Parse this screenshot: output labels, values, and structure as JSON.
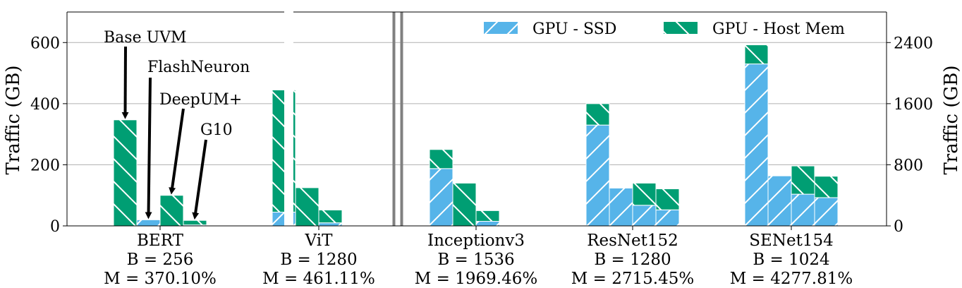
{
  "chart_data": {
    "type": "bar",
    "stacked": true,
    "grid": true,
    "legend_position": "top-right",
    "colors": {
      "ssd": "#56B4E9",
      "host": "#009E73"
    },
    "ylabel_left": "Traffic (GB)",
    "ylabel_right": "Traffic (GB)",
    "left_axis": {
      "ylim": [
        0,
        700
      ],
      "ticks": [
        "0",
        "200",
        "400",
        "600"
      ]
    },
    "right_axis": {
      "ylim": [
        0,
        2800
      ],
      "ticks": [
        "0",
        "800",
        "1600",
        "2400"
      ]
    },
    "legend": [
      {
        "label": "GPU - SSD",
        "key": "ssd"
      },
      {
        "label": "GPU - Host Mem",
        "key": "host"
      }
    ],
    "series_order": [
      "Base UVM",
      "FlashNeuron",
      "DeepUM+",
      "G10"
    ],
    "groups": [
      {
        "name": "BERT",
        "b": "B = 256",
        "m": "M = 370.10%",
        "axis": "left",
        "bars": [
          {
            "ssd": 0,
            "host": 347
          },
          {
            "ssd": 20,
            "host": 0
          },
          {
            "ssd": 0,
            "host": 100
          },
          {
            "ssd": 3,
            "host": 15
          }
        ]
      },
      {
        "name": "ViT",
        "b": "B = 1280",
        "m": "M = 461.11%",
        "axis": "left",
        "bars": [
          {
            "ssd": 45,
            "host": 400
          },
          {
            "ssd": 0,
            "host": 125
          },
          {
            "ssd": 10,
            "host": 42
          },
          {
            "ssd": 0,
            "host": 0
          }
        ]
      },
      {
        "name": "Inceptionv3",
        "b": "B = 1536",
        "m": "M = 1969.46%",
        "axis": "right",
        "bars": [
          {
            "ssd": 750,
            "host": 250
          },
          {
            "ssd": 0,
            "host": 560
          },
          {
            "ssd": 60,
            "host": 140
          },
          {
            "ssd": 0,
            "host": 0
          }
        ]
      },
      {
        "name": "ResNet152",
        "b": "B = 1280",
        "m": "M = 2715.45%",
        "axis": "right",
        "bars": [
          {
            "ssd": 1320,
            "host": 280
          },
          {
            "ssd": 495,
            "host": 0
          },
          {
            "ssd": 270,
            "host": 290
          },
          {
            "ssd": 210,
            "host": 275
          }
        ]
      },
      {
        "name": "SENet154",
        "b": "B = 1024",
        "m": "M = 4277.81%",
        "axis": "right",
        "bars": [
          {
            "ssd": 2120,
            "host": 250
          },
          {
            "ssd": 655,
            "host": 0
          },
          {
            "ssd": 415,
            "host": 370
          },
          {
            "ssd": 370,
            "host": 280
          }
        ]
      }
    ],
    "annotations": [
      {
        "text": "Base UVM",
        "target": {
          "group": 0,
          "bar": 0
        }
      },
      {
        "text": "FlashNeuron",
        "target": {
          "group": 0,
          "bar": 1
        }
      },
      {
        "text": "DeepUM+",
        "target": {
          "group": 0,
          "bar": 2
        }
      },
      {
        "text": "G10",
        "target": {
          "group": 0,
          "bar": 3
        }
      }
    ]
  }
}
